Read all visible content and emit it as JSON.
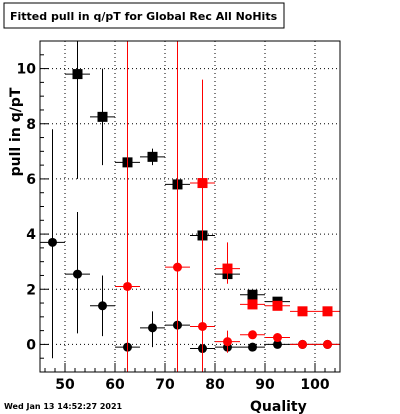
{
  "title": "Fitted pull in q/pT for Global Rec All NoHits",
  "timestamp": "Wed Jan 13 14:52:27 2021",
  "chart_data": {
    "type": "scatter",
    "title": "Fitted pull in q/pT for Global Rec All NoHits",
    "xlabel": "Quality",
    "ylabel": "pull in q/pT",
    "xlim": [
      45,
      105
    ],
    "ylim": [
      -1.0,
      11.0
    ],
    "x_ticks": [
      50,
      60,
      70,
      80,
      90,
      100
    ],
    "x_tick_labels": [
      "50",
      "60",
      "70",
      "80",
      "90",
      "100"
    ],
    "y_ticks": [
      0,
      2,
      4,
      6,
      8,
      10
    ],
    "y_tick_labels": [
      "0",
      "2",
      "4",
      "6",
      "8",
      "10"
    ],
    "grid": true,
    "series": [
      {
        "color": "#000000",
        "marker": "square",
        "points": [
          {
            "x": 52.5,
            "y": 9.8,
            "xerr": 2.5,
            "ylo": 6.0,
            "yhi": 11.0
          },
          {
            "x": 57.5,
            "y": 8.25,
            "xerr": 2.5,
            "ylo": 6.5,
            "yhi": 10.0
          },
          {
            "x": 62.5,
            "y": 6.6,
            "xerr": 2.5,
            "ylo": 5.3,
            "yhi": 7.8
          },
          {
            "x": 67.5,
            "y": 6.8,
            "xerr": 2.5,
            "ylo": 6.5,
            "yhi": 7.1
          },
          {
            "x": 72.5,
            "y": 5.8,
            "xerr": 2.5,
            "ylo": 5.5,
            "yhi": 6.1
          },
          {
            "x": 77.5,
            "y": 3.95,
            "xerr": 2.5,
            "ylo": 3.7,
            "yhi": 4.2
          },
          {
            "x": 82.5,
            "y": 2.55,
            "xerr": 2.5,
            "ylo": 2.35,
            "yhi": 2.75
          },
          {
            "x": 87.5,
            "y": 1.8,
            "xerr": 2.5,
            "ylo": 1.65,
            "yhi": 1.95
          },
          {
            "x": 92.5,
            "y": 1.55,
            "xerr": 2.5,
            "ylo": 1.45,
            "yhi": 1.65
          }
        ]
      },
      {
        "color": "#000000",
        "marker": "circle",
        "points": [
          {
            "x": 47.5,
            "y": 3.7,
            "xerr": 2.5,
            "ylo": -0.5,
            "yhi": 7.8
          },
          {
            "x": 52.5,
            "y": 2.55,
            "xerr": 2.5,
            "ylo": 0.4,
            "yhi": 4.8
          },
          {
            "x": 57.5,
            "y": 1.4,
            "xerr": 2.5,
            "ylo": 0.3,
            "yhi": 2.5
          },
          {
            "x": 62.5,
            "y": -0.1,
            "xerr": 2.5,
            "ylo": -0.3,
            "yhi": 0.1
          },
          {
            "x": 67.5,
            "y": 0.6,
            "xerr": 2.5,
            "ylo": -0.1,
            "yhi": 1.2
          },
          {
            "x": 72.5,
            "y": 0.7,
            "xerr": 2.5,
            "ylo": 0.5,
            "yhi": 0.9
          },
          {
            "x": 77.5,
            "y": -0.15,
            "xerr": 2.5,
            "ylo": -0.3,
            "yhi": 0.0
          },
          {
            "x": 82.5,
            "y": -0.1,
            "xerr": 2.5,
            "ylo": -0.2,
            "yhi": 0.0
          },
          {
            "x": 87.5,
            "y": -0.1,
            "xerr": 2.5,
            "ylo": -0.15,
            "yhi": -0.05
          },
          {
            "x": 92.5,
            "y": 0.0,
            "xerr": 2.5,
            "ylo": -0.05,
            "yhi": 0.05
          },
          {
            "x": 97.5,
            "y": 0.0,
            "xerr": 2.5,
            "ylo": -0.03,
            "yhi": 0.03
          },
          {
            "x": 102.5,
            "y": 0.0,
            "xerr": 2.5,
            "ylo": -0.03,
            "yhi": 0.03
          }
        ]
      },
      {
        "color": "#ff0000",
        "marker": "square",
        "points": [
          {
            "x": 77.5,
            "y": 5.85,
            "xerr": 2.5,
            "ylo": 3.9,
            "yhi": 7.8
          },
          {
            "x": 82.5,
            "y": 2.75,
            "xerr": 2.5,
            "ylo": 2.2,
            "yhi": 3.7
          },
          {
            "x": 87.5,
            "y": 1.45,
            "xerr": 2.5,
            "ylo": 1.3,
            "yhi": 1.6
          },
          {
            "x": 92.5,
            "y": 1.4,
            "xerr": 2.5,
            "ylo": 1.3,
            "yhi": 1.5
          },
          {
            "x": 97.5,
            "y": 1.2,
            "xerr": 2.5,
            "ylo": 1.1,
            "yhi": 1.3
          },
          {
            "x": 102.5,
            "y": 1.2,
            "xerr": 2.5,
            "ylo": 1.15,
            "yhi": 1.25
          }
        ]
      },
      {
        "color": "#ff0000",
        "marker": "circle",
        "points": [
          {
            "x": 62.5,
            "y": 2.1,
            "xerr": 2.5,
            "ylo": -1.0,
            "yhi": 11.0
          },
          {
            "x": 72.5,
            "y": 2.8,
            "xerr": 2.5,
            "ylo": -1.0,
            "yhi": 11.0
          },
          {
            "x": 77.5,
            "y": 0.65,
            "xerr": 2.5,
            "ylo": -1.0,
            "yhi": 9.6
          },
          {
            "x": 82.5,
            "y": 0.1,
            "xerr": 2.5,
            "ylo": -0.3,
            "yhi": 0.5
          },
          {
            "x": 87.5,
            "y": 0.35,
            "xerr": 2.5,
            "ylo": 0.2,
            "yhi": 0.5
          },
          {
            "x": 92.5,
            "y": 0.25,
            "xerr": 2.5,
            "ylo": 0.15,
            "yhi": 0.35
          },
          {
            "x": 97.5,
            "y": 0.0,
            "xerr": 2.5,
            "ylo": -0.05,
            "yhi": 0.05
          },
          {
            "x": 102.5,
            "y": 0.0,
            "xerr": 2.5,
            "ylo": -0.05,
            "yhi": 0.05
          }
        ]
      }
    ]
  }
}
